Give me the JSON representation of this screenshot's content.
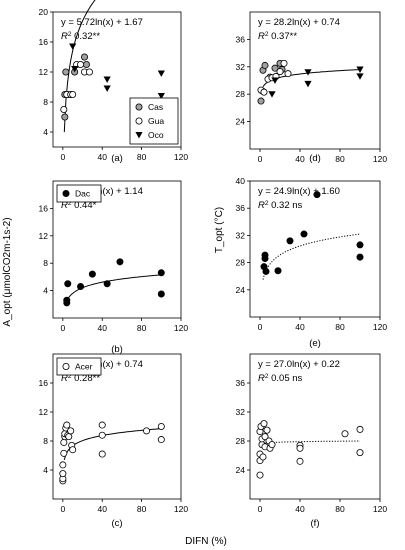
{
  "figure": {
    "xlabel": "DIFN (%)",
    "ylabel_left": "A_opt (μmolCO2m-1s-2)",
    "ylabel_right": "T_opt (°C)"
  },
  "chart_data": [
    {
      "id": "a",
      "type": "scatter",
      "panel_label": "(a)",
      "equation": "y = 5.72ln(x) + 1.67",
      "r2_value": "0.32**",
      "xlim": [
        -10,
        120
      ],
      "ylim": [
        2,
        20
      ],
      "xticks": [
        0,
        40,
        80,
        120
      ],
      "yticks": [
        4,
        8,
        12,
        16,
        20
      ],
      "legend_position": "bottom-right",
      "series": [
        {
          "name": "Cas",
          "marker": "circle-gray",
          "points": [
            [
              2,
              6
            ],
            [
              2,
              9
            ],
            [
              3,
              12
            ],
            [
              5,
              9
            ],
            [
              12,
              12
            ],
            [
              22,
              14
            ],
            [
              24,
              13
            ]
          ]
        },
        {
          "name": "Gua",
          "marker": "circle-open",
          "points": [
            [
              1,
              7
            ],
            [
              4,
              9
            ],
            [
              8,
              9
            ],
            [
              10,
              9
            ],
            [
              14,
              13
            ],
            [
              18,
              13
            ],
            [
              22,
              12
            ],
            [
              27,
              12
            ]
          ]
        },
        {
          "name": "Oco",
          "marker": "triangle-down",
          "points": [
            [
              10,
              15.4
            ],
            [
              12,
              12.4
            ],
            [
              45,
              11
            ],
            [
              45,
              9.8
            ],
            [
              100,
              11.8
            ],
            [
              100,
              8.8
            ]
          ]
        }
      ],
      "fit": {
        "type": "log",
        "a": 5.72,
        "b": 1.67,
        "x_range": [
          1.5,
          100
        ],
        "style": "solid"
      }
    },
    {
      "id": "d",
      "type": "scatter",
      "panel_label": "(d)",
      "equation": "y = 28.2ln(x) + 0.74",
      "r2_value": "0.37**",
      "xlim": [
        -10,
        120
      ],
      "ylim": [
        20,
        40
      ],
      "xticks": [
        0,
        40,
        80,
        120
      ],
      "yticks": [
        24,
        28,
        32,
        36
      ],
      "series": [
        {
          "name": "Cas",
          "marker": "circle-gray",
          "points": [
            [
              1,
              27
            ],
            [
              2,
              28.5
            ],
            [
              3,
              31.5
            ],
            [
              5,
              32.2
            ],
            [
              10,
              30.5
            ],
            [
              15,
              31.8
            ],
            [
              20,
              32.5
            ],
            [
              22,
              31.6
            ]
          ]
        },
        {
          "name": "Gua",
          "marker": "circle-open",
          "points": [
            [
              1,
              28.6
            ],
            [
              4,
              28.3
            ],
            [
              8,
              30.2
            ],
            [
              12,
              30.4
            ],
            [
              16,
              30.6
            ],
            [
              20,
              31.3
            ],
            [
              24,
              32.5
            ],
            [
              28,
              31
            ]
          ]
        },
        {
          "name": "Oco",
          "marker": "triangle-down",
          "points": [
            [
              12,
              28
            ],
            [
              15,
              30
            ],
            [
              48,
              31.2
            ],
            [
              48,
              29.5
            ],
            [
              100,
              31.6
            ],
            [
              100,
              30.6
            ]
          ]
        }
      ],
      "fit": {
        "type": "curve",
        "x_range": [
          3,
          100
        ],
        "y_range": [
          29.1,
          31.6
        ],
        "style": "solid"
      }
    },
    {
      "id": "b",
      "type": "scatter",
      "panel_label": "(b)",
      "equation": "y = 1.09ln(x) + 1.14",
      "r2_value": "0.44*",
      "xlim": [
        -10,
        120
      ],
      "ylim": [
        0,
        20
      ],
      "xticks": [
        0,
        40,
        80,
        120
      ],
      "yticks": [
        4,
        8,
        12,
        16
      ],
      "legend_position": "top-left",
      "series": [
        {
          "name": "Dac",
          "marker": "circle-filled",
          "points": [
            [
              4,
              2.2
            ],
            [
              4,
              2.6
            ],
            [
              5,
              5
            ],
            [
              18,
              4.6
            ],
            [
              30,
              6.4
            ],
            [
              45,
              5
            ],
            [
              58,
              8.2
            ],
            [
              100,
              6.6
            ],
            [
              100,
              3.5
            ]
          ]
        }
      ],
      "fit": {
        "type": "curve",
        "x_range": [
          3,
          100
        ],
        "y_range": [
          2.2,
          6.3
        ],
        "style": "solid"
      }
    },
    {
      "id": "e",
      "type": "scatter",
      "panel_label": "(e)",
      "equation": "y = 24.9ln(x) + 1.60",
      "r2_value": "0.32 ns",
      "xlim": [
        -10,
        120
      ],
      "ylim": [
        20,
        40
      ],
      "xticks": [
        0,
        40,
        80,
        120
      ],
      "yticks": [
        24,
        28,
        32,
        36,
        40
      ],
      "series": [
        {
          "name": "Dac",
          "marker": "circle-filled",
          "points": [
            [
              4,
              27.4
            ],
            [
              5,
              28.6
            ],
            [
              5,
              29.1
            ],
            [
              6,
              26.7
            ],
            [
              18,
              26.8
            ],
            [
              30,
              31.2
            ],
            [
              44,
              32.2
            ],
            [
              57,
              38
            ],
            [
              100,
              30.6
            ],
            [
              100,
              28.8
            ]
          ]
        }
      ],
      "fit": {
        "type": "curve",
        "x_range": [
          3,
          100
        ],
        "y_range": [
          25.5,
          32.2
        ],
        "style": "dotted"
      }
    },
    {
      "id": "c",
      "type": "scatter",
      "panel_label": "(c)",
      "equation": "y = 6.08ln(x) + 0.74",
      "r2_value": "0.28**",
      "xlim": [
        -10,
        120
      ],
      "ylim": [
        0,
        20
      ],
      "xticks": [
        0,
        40,
        80,
        120
      ],
      "yticks": [
        4,
        8,
        12,
        16
      ],
      "legend_position": "top-left",
      "series": [
        {
          "name": "Acer",
          "marker": "circle-open",
          "points": [
            [
              0,
              2.5
            ],
            [
              0,
              2.8
            ],
            [
              0,
              3.5
            ],
            [
              0,
              4.7
            ],
            [
              1,
              6.3
            ],
            [
              1,
              7.8
            ],
            [
              2,
              8.6
            ],
            [
              2,
              9
            ],
            [
              3,
              9.8
            ],
            [
              4,
              10.2
            ],
            [
              5,
              8.8
            ],
            [
              6,
              8.6
            ],
            [
              8,
              9.4
            ],
            [
              9,
              7.4
            ],
            [
              10,
              6.8
            ],
            [
              40,
              10.2
            ],
            [
              40,
              8.8
            ],
            [
              40,
              6.2
            ],
            [
              85,
              9.4
            ],
            [
              100,
              10
            ],
            [
              100,
              8.2
            ]
          ]
        }
      ],
      "fit": {
        "type": "curve",
        "x_range": [
          1.5,
          100
        ],
        "y_range": [
          5.4,
          9.7
        ],
        "style": "solid"
      }
    },
    {
      "id": "f",
      "type": "scatter",
      "panel_label": "(f)",
      "equation": "y = 27.0ln(x) + 0.22",
      "r2_value": "0.05 ns",
      "xlim": [
        -10,
        120
      ],
      "ylim": [
        20,
        40
      ],
      "xticks": [
        0,
        40,
        80,
        120
      ],
      "yticks": [
        24,
        28,
        32,
        36
      ],
      "series": [
        {
          "name": "Acer",
          "marker": "circle-open",
          "points": [
            [
              0,
              23.3
            ],
            [
              0,
              25.3
            ],
            [
              0,
              26.2
            ],
            [
              0,
              29.3
            ],
            [
              1,
              30
            ],
            [
              2,
              27.5
            ],
            [
              2,
              28.3
            ],
            [
              3,
              25.8
            ],
            [
              4,
              30.4
            ],
            [
              5,
              27.2
            ],
            [
              5,
              28.6
            ],
            [
              7,
              29.5
            ],
            [
              9,
              28
            ],
            [
              10,
              27
            ],
            [
              12,
              27.5
            ],
            [
              40,
              27.4
            ],
            [
              40,
              27
            ],
            [
              40,
              25.2
            ],
            [
              85,
              29
            ],
            [
              100,
              29.6
            ],
            [
              100,
              26.4
            ]
          ]
        }
      ],
      "fit": {
        "type": "curve",
        "x_range": [
          2,
          100
        ],
        "y_range": [
          27.6,
          28
        ],
        "style": "dotted"
      }
    }
  ]
}
